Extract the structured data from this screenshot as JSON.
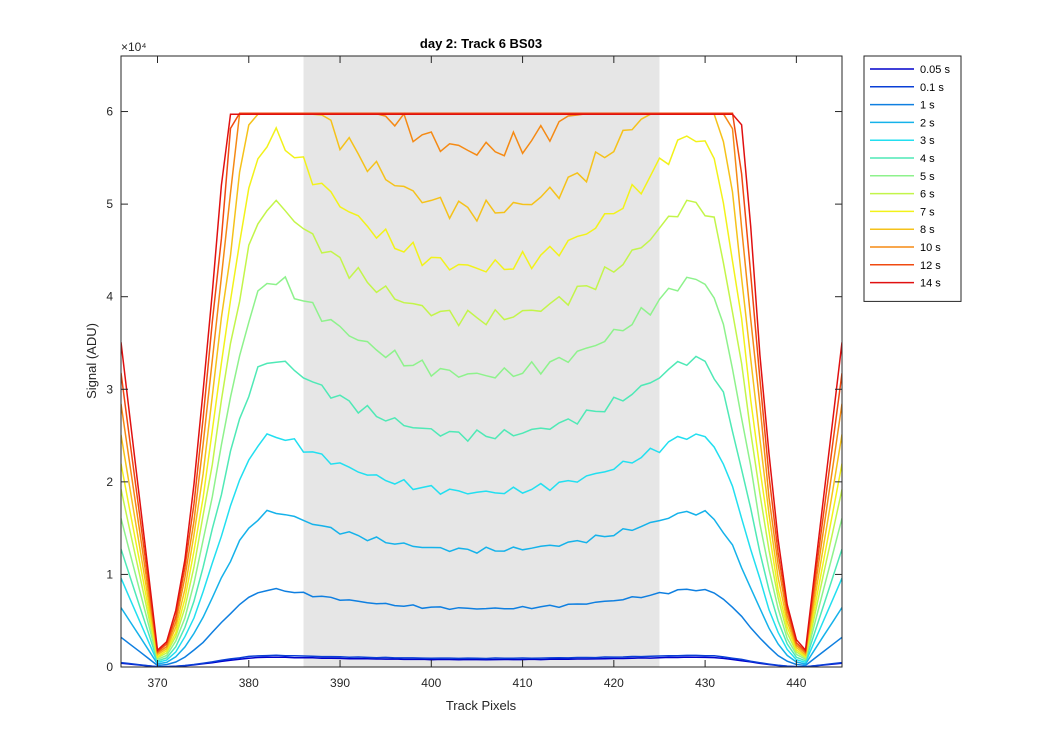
{
  "chart_data": {
    "type": "line",
    "title": "day 2: Track 6  BS03",
    "xlabel": "Track Pixels",
    "ylabel": "Signal (ADU)",
    "y_exponent_label": "×10⁴",
    "xlim": [
      366,
      445
    ],
    "ylim": [
      0,
      66000
    ],
    "x_ticks": [
      370,
      380,
      390,
      400,
      410,
      420,
      430,
      440
    ],
    "y_ticks": [
      0,
      10000,
      20000,
      30000,
      40000,
      50000,
      60000
    ],
    "y_tick_labels": [
      "0",
      "1",
      "2",
      "3",
      "4",
      "5",
      "6"
    ],
    "shaded_region_x": [
      386,
      425
    ],
    "shaded_color": "#e6e6e6",
    "legend_placement": "outside-right",
    "grid": false,
    "series": [
      {
        "name": "0.05 s",
        "color": "#0000cc",
        "exposure": 0.05
      },
      {
        "name": "0.1 s",
        "color": "#0a3fd6",
        "exposure": 0.1
      },
      {
        "name": "1 s",
        "color": "#0f7fe0",
        "exposure": 1
      },
      {
        "name": "2 s",
        "color": "#15b2ea",
        "exposure": 2
      },
      {
        "name": "3 s",
        "color": "#22dff0",
        "exposure": 3
      },
      {
        "name": "4 s",
        "color": "#4fe9b6",
        "exposure": 4
      },
      {
        "name": "5 s",
        "color": "#8ef28c",
        "exposure": 5
      },
      {
        "name": "6 s",
        "color": "#c3f54a",
        "exposure": 6
      },
      {
        "name": "7 s",
        "color": "#f2f21a",
        "exposure": 7
      },
      {
        "name": "8 s",
        "color": "#f5c21a",
        "exposure": 8
      },
      {
        "name": "10 s",
        "color": "#f58a14",
        "exposure": 10
      },
      {
        "name": "12 s",
        "color": "#f04a10",
        "exposure": 12
      },
      {
        "name": "14 s",
        "color": "#e01010",
        "exposure": 14
      }
    ]
  }
}
